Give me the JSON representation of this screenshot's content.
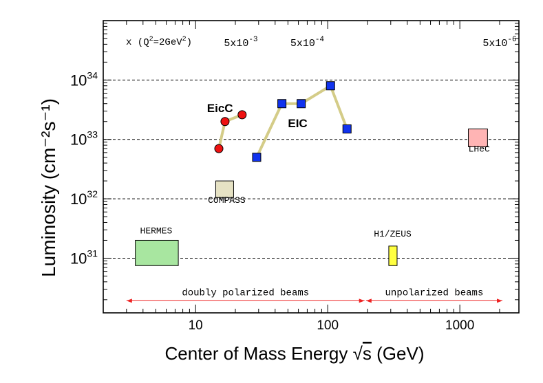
{
  "chart_data": {
    "type": "scatter",
    "xscale": "log",
    "yscale": "log",
    "xlim": [
      2,
      2800
    ],
    "ylim": [
      1.2e+30,
      1e+35
    ],
    "xlabel_prefix": "Center of Mass Energy ",
    "xlabel_sqrt": "s",
    "xlabel_suffix": " (GeV)",
    "ylabel": "Luminosity (cm⁻²s⁻¹)",
    "x_ticks": [
      {
        "value": 10,
        "label": "10"
      },
      {
        "value": 100,
        "label": "100"
      },
      {
        "value": 1000,
        "label": "1000"
      }
    ],
    "y_ticks": [
      {
        "value": 1e+31,
        "base": "10",
        "exp": "31"
      },
      {
        "value": 1e+32,
        "base": "10",
        "exp": "32"
      },
      {
        "value": 1e+33,
        "base": "10",
        "exp": "33"
      },
      {
        "value": 1e+34,
        "base": "10",
        "exp": "34"
      }
    ],
    "gridlines_y": [
      1e+31,
      1e+32,
      1e+33,
      1e+34
    ],
    "x_annotation": {
      "prefix": "x (Q",
      "sup1": "2",
      "mid": "=2GeV",
      "sup2": "2",
      "suffix": ")"
    },
    "x_values": [
      {
        "at": 22,
        "base": "5x10",
        "exp": "-3"
      },
      {
        "at": 70,
        "base": "5x10",
        "exp": "-4"
      },
      {
        "at": 2000,
        "base": "5x10",
        "exp": "-6"
      }
    ],
    "series": [
      {
        "name": "EicC",
        "marker": "circle",
        "color": "#ee1111",
        "line_color": "#d4cc88",
        "x": [
          15,
          16.7,
          22.5
        ],
        "y": [
          7e+32,
          2e+33,
          2.6e+33
        ],
        "label": "EicC",
        "label_at": [
          12.2,
          2.9e+33
        ]
      },
      {
        "name": "EIC",
        "marker": "square",
        "color": "#1133ee",
        "line_color": "#d4cc88",
        "x": [
          29,
          45,
          63,
          105,
          140
        ],
        "y": [
          5e+32,
          4e+33,
          4e+33,
          8e+33,
          1.5e+33
        ],
        "label": "EIC",
        "label_at": [
          50,
          1.6e+33
        ]
      }
    ],
    "boxes": [
      {
        "name": "HERMES",
        "x0": 3.5,
        "x1": 7.4,
        "y0": 7.5e+30,
        "y1": 2e+31,
        "fill": "#a8e6a0",
        "label": "HERMES",
        "label_at": [
          3.8,
          2.6e+31
        ]
      },
      {
        "name": "COMPASS",
        "x0": 14.2,
        "x1": 19.4,
        "y0": 1.05e+32,
        "y1": 2e+32,
        "fill": "#e6e2c4",
        "label": "COMPASS",
        "label_at": [
          17.2,
          8.5e+31
        ]
      },
      {
        "name": "H1/ZEUS",
        "x0": 290,
        "x1": 335,
        "y0": 7.5e+30,
        "y1": 1.6e+31,
        "fill": "#ffff40",
        "label": "H1/ZEUS",
        "label_at": [
          310,
          2.3e+31
        ]
      },
      {
        "name": "LHeC",
        "x0": 1160,
        "x1": 1620,
        "y0": 7.5e+32,
        "y1": 1.5e+33,
        "fill": "#ffb4b4",
        "label": "LHeC",
        "label_at": [
          1400,
          6.2e+32
        ]
      }
    ],
    "arrows": [
      {
        "name": "doubly polarized beams",
        "label": "doubly polarized beams",
        "x0": 3.0,
        "x1": 190,
        "y": 1.92e+30
      },
      {
        "name": "unpolarized beams",
        "label": "unpolarized beams",
        "x0": 195,
        "x1": 2100,
        "y": 1.92e+30
      }
    ]
  }
}
